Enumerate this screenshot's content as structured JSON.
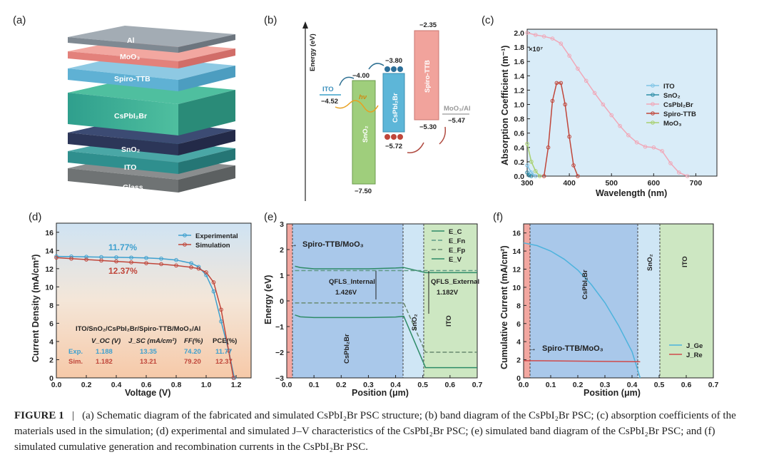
{
  "panels": {
    "a": {
      "label": "(a)",
      "layers": [
        "Al",
        "MoO₃",
        "Spiro-TTB",
        "CsPbI₂Br",
        "SnO₂",
        "ITO",
        "Glass"
      ]
    },
    "b": {
      "label": "(b)",
      "ylabel": "Energy (eV)",
      "ito": {
        "name": "ITO",
        "value": "−4.52"
      },
      "sno2": {
        "name": "SnO₂",
        "cb": "−4.00",
        "vb": "−7.50"
      },
      "perov": {
        "name": "CsPbI₂Br",
        "cb": "−3.80",
        "vb": "−5.72"
      },
      "spiro": {
        "name": "Spiro-TTB",
        "cb": "−2.35",
        "vb": "−5.30"
      },
      "moo3": {
        "name": "MoO₃/Al",
        "value": "−5.47"
      },
      "hv": "hν",
      "electron": "e",
      "hole": "h"
    },
    "c": {
      "label": "(c)",
      "xlabel": "Wavelength (nm)",
      "ylabel": "Absorption Coefficient (m⁻¹)",
      "multiplier": "×10⁷",
      "xticks": [
        "300",
        "400",
        "500",
        "600",
        "700"
      ],
      "yticks": [
        "0.0",
        "0.2",
        "0.4",
        "0.6",
        "0.8",
        "1.0",
        "1.2",
        "1.4",
        "1.6",
        "1.8",
        "2.0"
      ],
      "legend": [
        "ITO",
        "SnO₂",
        "CsPbI₂Br",
        "Spiro-TTB",
        "MoO₃"
      ]
    },
    "d": {
      "label": "(d)",
      "xlabel": "Voltage (V)",
      "ylabel": "Current Density (mA/cm²)",
      "xticks": [
        "0.0",
        "0.2",
        "0.4",
        "0.6",
        "0.8",
        "1.0",
        "1.2"
      ],
      "yticks": [
        "0",
        "2",
        "4",
        "6",
        "8",
        "10",
        "12",
        "14",
        "16"
      ],
      "legend": [
        "Experimental",
        "Simulation"
      ],
      "pce_exp": "11.77%",
      "pce_sim": "12.37%",
      "stack_title": "ITO/SnO₂/CsPbI₂Br/Spiro-TTB/MoO₃/Al",
      "table_header": [
        "V_OC (V)",
        "J_SC (mA/cm²)",
        "FF(%)",
        "PCE(%)"
      ],
      "row_exp": [
        "Exp.",
        "1.188",
        "13.35",
        "74.20",
        "11.77"
      ],
      "row_sim": [
        "Sim.",
        "1.182",
        "13.21",
        "79.20",
        "12.37"
      ]
    },
    "e": {
      "label": "(e)",
      "xlabel": "Position (μm)",
      "ylabel": "Energy (eV)",
      "xticks": [
        "0.0",
        "0.1",
        "0.2",
        "0.3",
        "0.4",
        "0.5",
        "0.6",
        "0.7"
      ],
      "yticks": [
        "3",
        "2",
        "1",
        "0",
        "−1",
        "−2",
        "−3"
      ],
      "legend": [
        "E_C",
        "E_Fn",
        "E_Fp",
        "E_V"
      ],
      "spiro_label": "Spiro-TTB/MoO₃",
      "qfls_internal": "QFLS_Internal",
      "qfls_internal_value": "1.426V",
      "qfls_external": "QFLS_External",
      "qfls_external_value": "1.182V",
      "regions": [
        "CsPbI₂Br",
        "SnO₂",
        "ITO"
      ]
    },
    "f": {
      "label": "(f)",
      "xlabel": "Position (μm)",
      "ylabel": "Cumulative Current (mA/cm²)",
      "xticks": [
        "0.0",
        "0.1",
        "0.2",
        "0.3",
        "0.4",
        "0.5",
        "0.6",
        "0.7"
      ],
      "yticks": [
        "0",
        "2",
        "4",
        "6",
        "8",
        "10",
        "12",
        "14",
        "16"
      ],
      "legend": [
        "J_Ge",
        "J_Re"
      ],
      "spiro_label": "Spiro-TTB/MoO₃",
      "regions": [
        "CsPbI₂Br",
        "SnO₂",
        "ITO"
      ]
    }
  },
  "caption": {
    "head": "FIGURE 1",
    "sep": "|",
    "text": "(a) Schematic diagram of the fabricated and simulated CsPbI₂Br PSC structure; (b) band diagram of the CsPbI₂Br PSC; (c) absorption coefficients of the materials used in the simulation; (d) experimental and simulated J–V characteristics of the CsPbI₂Br PSC; (e) simulated band diagram of the CsPbI₂Br PSC; and (f) simulated cumulative generation and recombination currents in the CsPbI₂Br PSC."
  },
  "chart_data": [
    {
      "type": "scatter",
      "title": "(c) Absorption coefficients",
      "xlabel": "Wavelength (nm)",
      "ylabel": "Absorption Coefficient (m⁻¹) ×10⁷",
      "xlim": [
        300,
        750
      ],
      "ylim": [
        0,
        2.05
      ],
      "series": [
        {
          "name": "CsPbI₂Br",
          "x": [
            300,
            320,
            340,
            360,
            380,
            400,
            420,
            440,
            460,
            480,
            500,
            520,
            540,
            560,
            580,
            600,
            620,
            640,
            660,
            680
          ],
          "y": [
            2.0,
            1.97,
            1.95,
            1.92,
            1.85,
            1.68,
            1.5,
            1.33,
            1.16,
            1.0,
            0.85,
            0.7,
            0.57,
            0.47,
            0.41,
            0.4,
            0.35,
            0.18,
            0.05,
            0.0
          ]
        },
        {
          "name": "Spiro-TTB",
          "x": [
            340,
            350,
            360,
            370,
            380,
            390,
            400,
            410,
            420
          ],
          "y": [
            0.0,
            0.4,
            1.05,
            1.3,
            1.3,
            1.0,
            0.55,
            0.15,
            0.0
          ]
        },
        {
          "name": "ITO",
          "x": [
            300,
            310,
            320
          ],
          "y": [
            0.15,
            0.05,
            0.0
          ]
        },
        {
          "name": "SnO₂",
          "x": [
            300,
            305,
            310
          ],
          "y": [
            0.05,
            0.01,
            0.0
          ]
        },
        {
          "name": "MoO₃",
          "x": [
            300,
            310,
            320,
            330
          ],
          "y": [
            0.45,
            0.2,
            0.07,
            0.0
          ]
        }
      ]
    },
    {
      "type": "line",
      "title": "(d) J–V characteristics",
      "xlabel": "Voltage (V)",
      "ylabel": "Current Density (mA/cm²)",
      "xlim": [
        0,
        1.3
      ],
      "ylim": [
        0,
        17
      ],
      "series": [
        {
          "name": "Experimental",
          "x": [
            0,
            0.1,
            0.2,
            0.3,
            0.4,
            0.5,
            0.6,
            0.7,
            0.8,
            0.9,
            0.95,
            1.0,
            1.05,
            1.1,
            1.15,
            1.188
          ],
          "y": [
            13.35,
            13.33,
            13.3,
            13.27,
            13.25,
            13.22,
            13.18,
            13.1,
            12.95,
            12.6,
            12.2,
            11.3,
            9.5,
            6.2,
            3.0,
            0.0
          ]
        },
        {
          "name": "Simulation",
          "x": [
            0,
            0.1,
            0.2,
            0.3,
            0.4,
            0.5,
            0.6,
            0.7,
            0.8,
            0.9,
            0.95,
            1.0,
            1.05,
            1.1,
            1.15,
            1.182
          ],
          "y": [
            13.21,
            13.1,
            13.0,
            12.9,
            12.8,
            12.7,
            12.6,
            12.5,
            12.35,
            12.15,
            12.0,
            11.6,
            10.5,
            7.5,
            3.0,
            0.0
          ]
        }
      ]
    },
    {
      "type": "line",
      "title": "(e) Simulated band diagram",
      "xlabel": "Position (μm)",
      "ylabel": "Energy (eV)",
      "xlim": [
        0,
        0.7
      ],
      "ylim": [
        -3,
        3
      ],
      "series": [
        {
          "name": "E_C",
          "x": [
            0.03,
            0.05,
            0.1,
            0.2,
            0.3,
            0.4,
            0.43,
            0.51,
            0.7
          ],
          "y": [
            1.35,
            1.3,
            1.25,
            1.25,
            1.25,
            1.28,
            1.3,
            1.1,
            1.1
          ]
        },
        {
          "name": "E_Fn",
          "x": [
            0.03,
            0.43,
            0.51,
            0.7
          ],
          "y": [
            1.18,
            1.18,
            1.18,
            1.18
          ]
        },
        {
          "name": "E_Fp",
          "x": [
            0.03,
            0.43,
            0.51,
            0.7
          ],
          "y": [
            -0.08,
            -0.08,
            -2.0,
            -2.0
          ]
        },
        {
          "name": "E_V",
          "x": [
            0.03,
            0.05,
            0.1,
            0.2,
            0.3,
            0.4,
            0.43,
            0.51,
            0.7
          ],
          "y": [
            -0.55,
            -0.62,
            -0.65,
            -0.65,
            -0.65,
            -0.63,
            -0.6,
            -2.6,
            -2.6
          ]
        }
      ]
    },
    {
      "type": "line",
      "title": "(f) Cumulative currents",
      "xlabel": "Position (μm)",
      "ylabel": "Cumulative Current (mA/cm²)",
      "xlim": [
        0,
        0.7
      ],
      "ylim": [
        0,
        17
      ],
      "series": [
        {
          "name": "J_Ge",
          "x": [
            0.0,
            0.05,
            0.1,
            0.15,
            0.2,
            0.25,
            0.3,
            0.35,
            0.4,
            0.43
          ],
          "y": [
            14.9,
            14.6,
            14.0,
            13.1,
            11.9,
            10.3,
            8.3,
            5.8,
            2.9,
            0.0
          ]
        },
        {
          "name": "J_Re",
          "x": [
            0.0,
            0.1,
            0.2,
            0.3,
            0.43
          ],
          "y": [
            1.9,
            1.88,
            1.85,
            1.82,
            1.78
          ]
        }
      ]
    }
  ]
}
